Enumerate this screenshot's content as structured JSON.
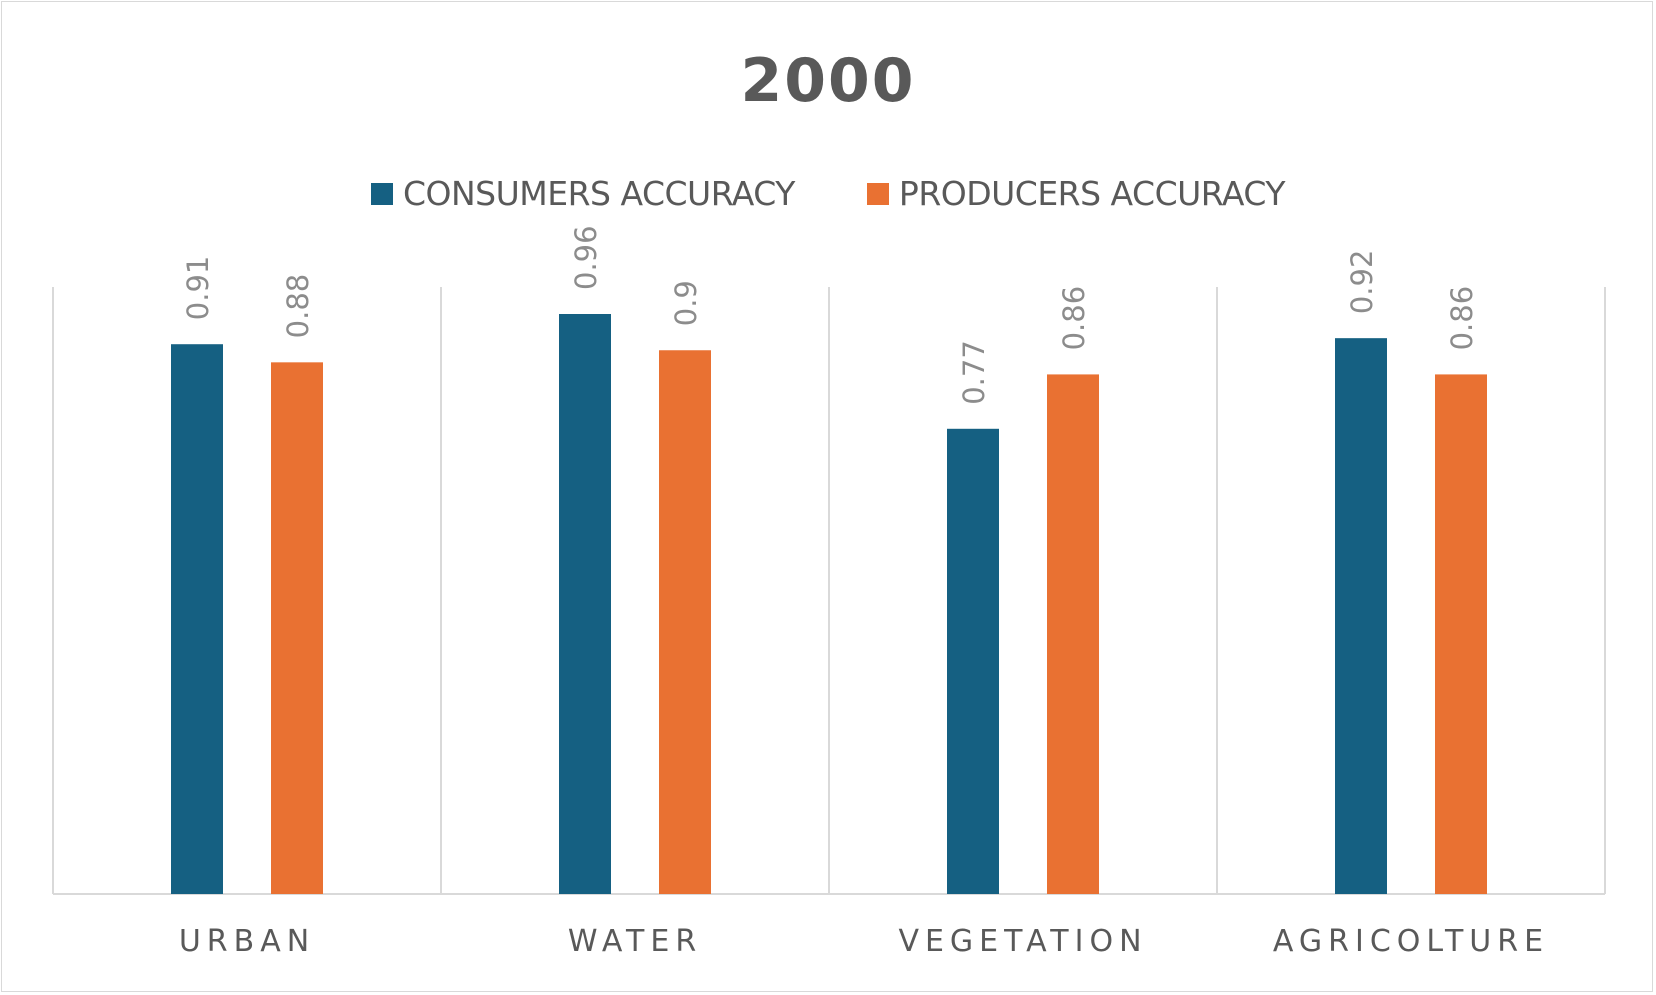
{
  "chart_data": {
    "type": "bar",
    "title": "2000",
    "xlabel": "",
    "ylabel": "",
    "categories": [
      "URBAN",
      "WATER",
      "VEGETATION",
      "AGRICOLTURE"
    ],
    "series": [
      {
        "name": "CONSUMERS ACCURACY",
        "color": "#156082",
        "values": [
          0.91,
          0.96,
          0.77,
          0.92
        ]
      },
      {
        "name": "PRODUCERS ACCURACY",
        "color": "#E97132",
        "values": [
          0.88,
          0.9,
          0.86,
          0.86
        ]
      }
    ],
    "ylim": [
      0,
      1.2
    ],
    "grid": "vertical category separators",
    "legend": "top"
  }
}
